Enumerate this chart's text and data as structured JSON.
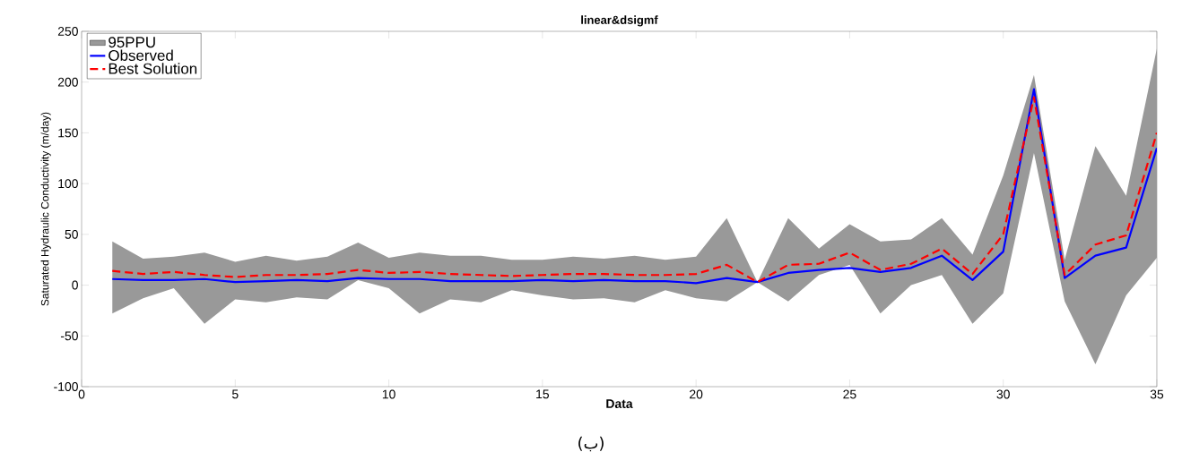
{
  "chart_data": {
    "type": "line",
    "title": "linear&dsigmf",
    "xlabel": "Data",
    "ylabel": "Saturated Hydraulic Conductivity (m/day)",
    "annotations": [
      "(ب)"
    ],
    "x": [
      1,
      2,
      3,
      4,
      5,
      6,
      7,
      8,
      9,
      10,
      11,
      12,
      13,
      14,
      15,
      16,
      17,
      18,
      19,
      20,
      21,
      22,
      23,
      24,
      25,
      26,
      27,
      28,
      29,
      30,
      31,
      32,
      33,
      34,
      35
    ],
    "series": [
      {
        "name": "95PPU",
        "color": "#999999",
        "values": [
          null,
          null,
          null,
          null,
          null,
          null,
          null,
          null,
          null,
          null,
          null,
          null,
          null,
          null,
          null,
          null,
          null,
          null,
          null,
          null,
          null,
          null,
          null,
          null,
          null,
          null,
          null,
          null,
          null,
          null,
          null,
          null,
          null,
          null,
          null
        ],
        "upper": [
          43,
          26,
          28,
          32,
          23,
          29,
          24,
          28,
          42,
          27,
          32,
          29,
          29,
          25,
          25,
          28,
          26,
          29,
          25,
          28,
          66,
          3,
          66,
          36,
          60,
          43,
          45,
          66,
          30,
          108,
          207,
          25,
          137,
          88,
          233
        ],
        "lower": [
          -28,
          -13,
          -3,
          -38,
          -14,
          -17,
          -12,
          -14,
          5,
          -3,
          -28,
          -14,
          -17,
          -5,
          -10,
          -14,
          -13,
          -17,
          -5,
          -13,
          -16,
          3,
          -16,
          10,
          20,
          -28,
          0,
          10,
          -38,
          -8,
          130,
          -16,
          -78,
          -10,
          27
        ]
      },
      {
        "name": "Observed",
        "color": "#0000ff",
        "line_style": "solid",
        "values": [
          6,
          5,
          5,
          6,
          3,
          4,
          5,
          4,
          7,
          6,
          6,
          4,
          4,
          4,
          5,
          4,
          5,
          4,
          4,
          2,
          7,
          3,
          12,
          15,
          17,
          13,
          17,
          29,
          5,
          33,
          193,
          7,
          29,
          37,
          135
        ]
      },
      {
        "name": "Best Solution",
        "color": "#ff0000",
        "line_style": "dashed",
        "values": [
          14,
          11,
          13,
          10,
          8,
          10,
          10,
          11,
          15,
          12,
          13,
          11,
          10,
          9,
          10,
          11,
          11,
          10,
          10,
          11,
          20,
          3,
          20,
          21,
          32,
          15,
          21,
          36,
          11,
          50,
          185,
          10,
          40,
          49,
          150
        ]
      }
    ],
    "xlim": [
      0,
      35
    ],
    "xticks": [
      0,
      5,
      10,
      15,
      20,
      25,
      30,
      35
    ],
    "ylim": [
      -100,
      250
    ],
    "yticks": [
      -100,
      -50,
      0,
      50,
      100,
      150,
      200,
      250
    ],
    "grid": false,
    "legend": "top left",
    "marker": "none"
  }
}
